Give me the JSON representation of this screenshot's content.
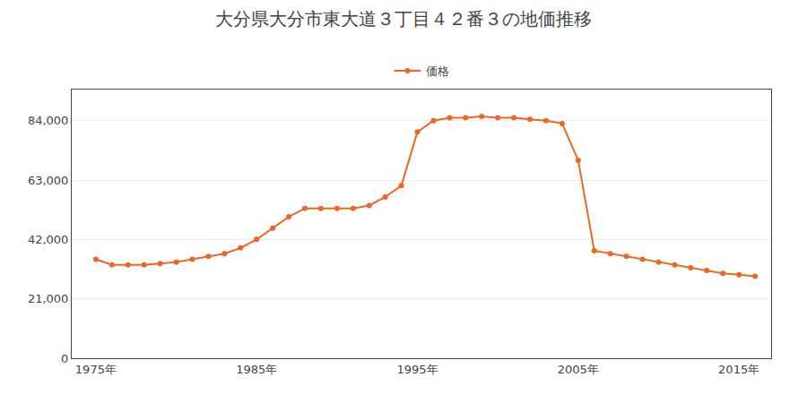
{
  "chart_data": {
    "type": "line",
    "title": "大分県大分市東大道３丁目４２番３の地価推移",
    "x": [
      1975,
      1976,
      1977,
      1978,
      1979,
      1980,
      1981,
      1982,
      1983,
      1984,
      1985,
      1986,
      1987,
      1988,
      1989,
      1990,
      1991,
      1992,
      1993,
      1994,
      1995,
      1996,
      1997,
      1998,
      1999,
      2000,
      2001,
      2002,
      2003,
      2004,
      2005,
      2006,
      2007,
      2008,
      2009,
      2010,
      2011,
      2012,
      2013,
      2014,
      2015,
      2016
    ],
    "series": [
      {
        "name": "価格",
        "color": "#EE6622",
        "marker": "circle",
        "line_style": "solid",
        "values": [
          35000,
          33000,
          33000,
          33000,
          33500,
          34000,
          35000,
          36000,
          37000,
          39000,
          42000,
          46000,
          50000,
          53000,
          53000,
          53000,
          53000,
          54000,
          57000,
          61000,
          80000,
          84000,
          85000,
          85000,
          85500,
          85000,
          85000,
          84500,
          84000,
          83000,
          70000,
          38000,
          37000,
          36000,
          35000,
          34000,
          33000,
          32000,
          31000,
          30000,
          29500,
          29000
        ]
      }
    ],
    "xlim": [
      1973.5,
      2017
    ],
    "xticks": [
      {
        "value": 1975,
        "label": "1975年"
      },
      {
        "value": 1985,
        "label": "1985年"
      },
      {
        "value": 1995,
        "label": "1995年"
      },
      {
        "value": 2005,
        "label": "2005年"
      },
      {
        "value": 2015,
        "label": "2015年"
      }
    ],
    "ylim": [
      0,
      95000
    ],
    "yticks": [
      0,
      {
        "value": 21000,
        "label": "21,000"
      },
      {
        "value": 42000,
        "label": "42,000"
      },
      {
        "value": 63000,
        "label": "63,000"
      },
      {
        "value": 84000,
        "label": "84,000"
      }
    ],
    "grid": "y",
    "legend": "upper center"
  }
}
